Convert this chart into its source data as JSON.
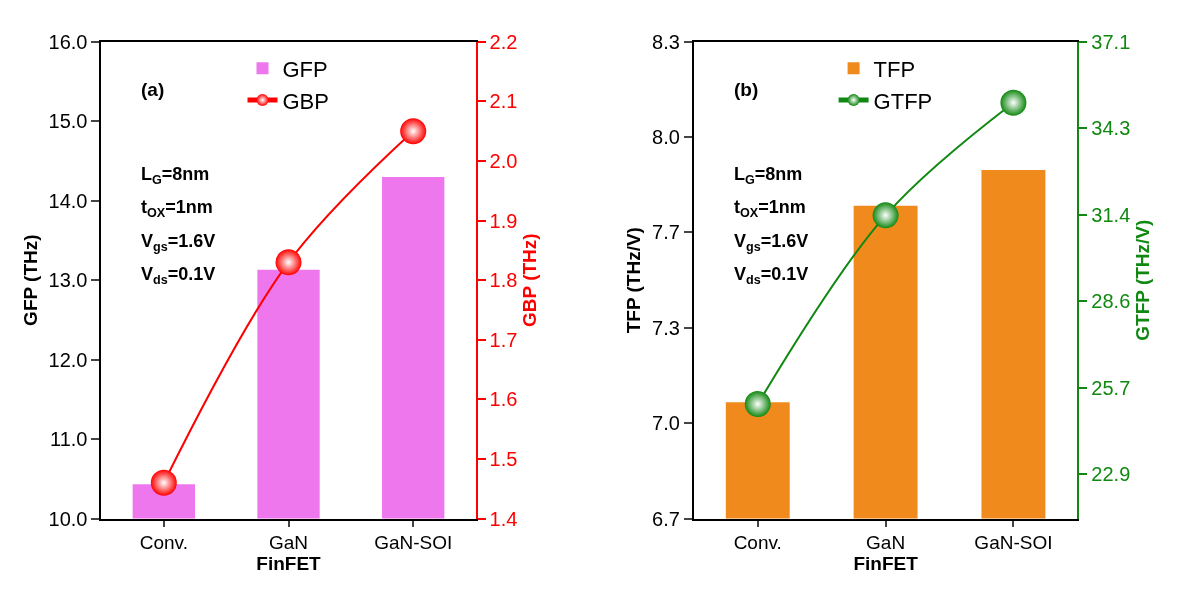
{
  "chart_data": [
    {
      "type": "bar",
      "categories": [
        "Conv.",
        "GaN",
        "GaN-SOI"
      ],
      "xlabel": "FinFET",
      "ylabel": "GFP (THz)",
      "y2label": "GBP (THz)",
      "ylim": [
        10.0,
        16.0
      ],
      "yticks": [
        {
          "value": 10,
          "label": "10.0"
        },
        {
          "value": 11,
          "label": "11.0"
        },
        {
          "value": 12,
          "label": "12.0"
        },
        {
          "value": 13,
          "label": "13.0"
        },
        {
          "value": 14,
          "label": "14.0"
        },
        {
          "value": 15,
          "label": "15.0"
        },
        {
          "value": 16,
          "label": "16.0"
        }
      ],
      "y2lim": [
        1.4,
        2.2
      ],
      "y2ticks": [
        1.4,
        1.5,
        1.6,
        1.7,
        1.8,
        1.9,
        {
          "value": 2.0,
          "label": "2.0"
        },
        2.1,
        2.2
      ],
      "series": [
        {
          "name": "GFP",
          "color": "#ee77ee",
          "values": [
            10.43,
            13.13,
            14.3
          ]
        },
        {
          "name": "GBP",
          "type": "line",
          "axis": "y2",
          "color": "#ff0000",
          "marker": "circle",
          "values": [
            1.46,
            1.83,
            2.05
          ]
        }
      ],
      "legend": "top",
      "annotations": [
        "(a)",
        "L$_{G}$=8nm",
        "t$_{OX}$=1nm",
        "V$_{gs}$=1.6V",
        "V$_{ds}$=0.1V"
      ]
    },
    {
      "type": "bar",
      "categories": [
        "Conv.",
        "GaN",
        "GaN-SOI"
      ],
      "xlabel": "FinFET",
      "ylabel": "TFP (THz/V)",
      "y2label": "GTFP (THz/V)",
      "ylim": [
        6.7,
        8.3
      ],
      "yticks": [
        {
          "value": 6.7,
          "label": "6.7"
        },
        {
          "value": 7.02,
          "label": "7.0"
        },
        {
          "value": 7.34,
          "label": "7.3"
        },
        {
          "value": 7.66,
          "label": "7.7"
        },
        {
          "value": 7.98,
          "label": "8.0"
        },
        {
          "value": 8.3,
          "label": "8.3"
        }
      ],
      "y2lim": [
        21.44,
        37.1
      ],
      "y2ticks": [
        {
          "value": 22.9,
          "label": "22.9"
        },
        {
          "value": 25.74,
          "label": "25.7"
        },
        {
          "value": 28.58,
          "label": "28.6"
        },
        {
          "value": 31.42,
          "label": "31.4"
        },
        {
          "value": 34.26,
          "label": "34.3"
        },
        {
          "value": 37.1,
          "label": "37.1"
        }
      ],
      "series": [
        {
          "name": "TFP",
          "color": "#f08a1c",
          "values": [
            7.09,
            7.75,
            7.87
          ]
        },
        {
          "name": "GTFP",
          "type": "line",
          "axis": "y2",
          "color": "#118811",
          "marker": "circle",
          "values": [
            25.2,
            31.4,
            35.1
          ]
        }
      ],
      "legend": "top",
      "annotations": [
        "(b)",
        "L$_{G}$=8nm",
        "t$_{OX}$=1nm",
        "V$_{gs}$=1.6V",
        "V$_{ds}$=0.1V"
      ]
    }
  ]
}
